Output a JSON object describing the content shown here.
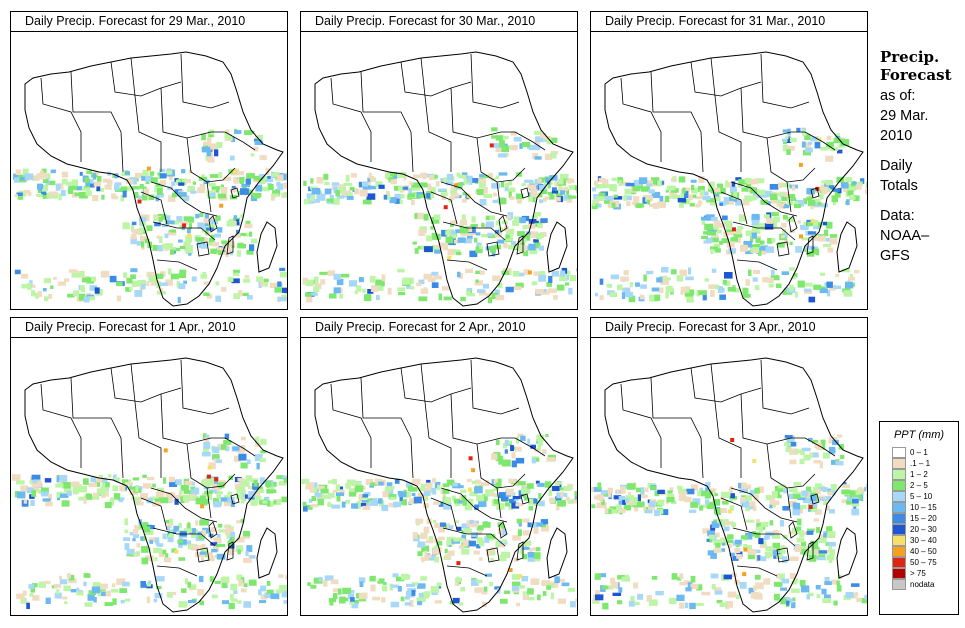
{
  "panels": [
    {
      "title": "Daily Precip. Forecast for  29 Mar., 2010"
    },
    {
      "title": "Daily Precip. Forecast for  30 Mar., 2010"
    },
    {
      "title": "Daily Precip. Forecast for  31 Mar., 2010"
    },
    {
      "title": "Daily Precip. Forecast for  1 Apr., 2010"
    },
    {
      "title": "Daily Precip. Forecast for  2 Apr., 2010"
    },
    {
      "title": "Daily Precip. Forecast for  3 Apr., 2010"
    }
  ],
  "side": {
    "title_line1": "Precip.",
    "title_line2": "Forecast",
    "asof_line1": "as of:",
    "asof_line2": "29 Mar.",
    "asof_line3": "2010",
    "daily_line1": "Daily",
    "daily_line2": "Totals",
    "data_line1": "Data:",
    "data_line2": "NOAA–",
    "data_line3": "GFS"
  },
  "legend": {
    "title": "PPT (mm)",
    "items": [
      {
        "label": "0 – 1",
        "color": "#ffffff"
      },
      {
        "label": ".1 – 1",
        "color": "#f0dcc0"
      },
      {
        "label": "1 – 2",
        "color": "#bdf5a6"
      },
      {
        "label": "2 – 5",
        "color": "#7ee86e"
      },
      {
        "label": "5 – 10",
        "color": "#a8d8f8"
      },
      {
        "label": "10 – 15",
        "color": "#6cb8f0"
      },
      {
        "label": "15 – 20",
        "color": "#3a8ae6"
      },
      {
        "label": "20 – 30",
        "color": "#1c56d2"
      },
      {
        "label": "30 – 40",
        "color": "#f6e06a"
      },
      {
        "label": "40 – 50",
        "color": "#f6a11e"
      },
      {
        "label": "50 – 75",
        "color": "#e02414"
      },
      {
        "label": "> 75",
        "color": "#b00000"
      },
      {
        "label": "nodata",
        "color": "#c8c8c8"
      }
    ]
  }
}
